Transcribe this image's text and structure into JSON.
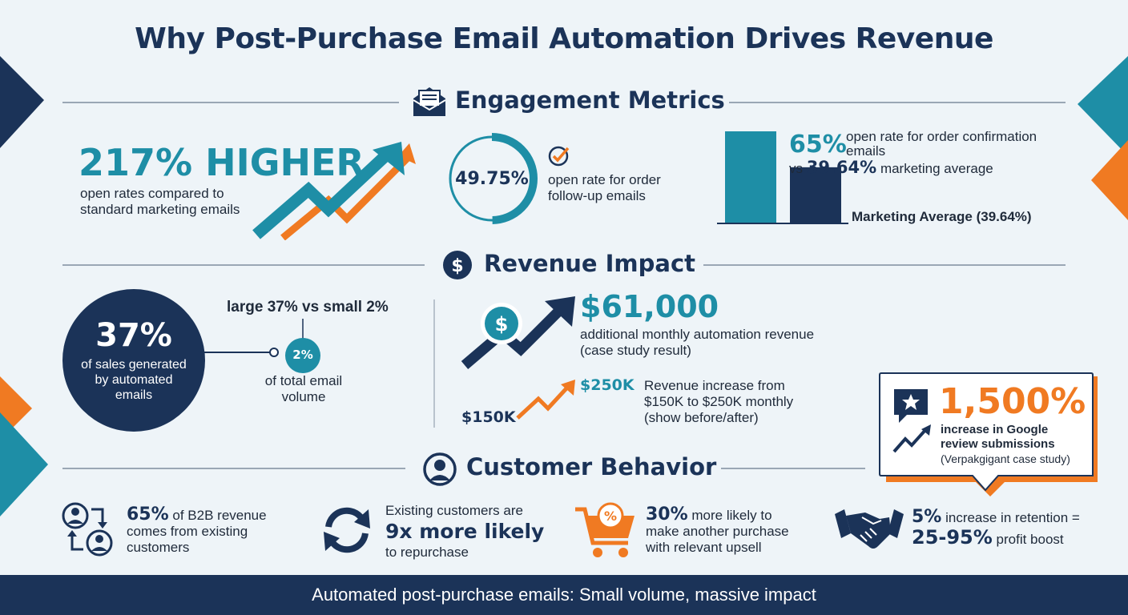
{
  "title": "Why Post-Purchase Email Automation Drives Revenue",
  "sections": {
    "engagement": "Engagement Metrics",
    "revenue": "Revenue Impact",
    "behavior": "Customer Behavior"
  },
  "engagement": {
    "higher": {
      "headline": "217% HIGHER",
      "desc_line1": "open rates compared to",
      "desc_line2": "standard marketing emails"
    },
    "ring": {
      "value_label": "49.75%",
      "value": 49.75,
      "desc_line1": "open rate for order",
      "desc_line2": "follow-up emails"
    },
    "bars": {
      "pct": "65%",
      "desc_line1": "open rate for order confirmation",
      "desc_line2": "emails",
      "vs_prefix": "vs",
      "vs_value": "39.64%",
      "vs_suffix": "marketing average",
      "axis_label": "Marketing Average (39.64%)"
    }
  },
  "chart_data": {
    "type": "bar",
    "categories": [
      "Order confirmation",
      "Marketing average"
    ],
    "values": [
      65,
      39.64
    ],
    "ylim": [
      0,
      65
    ]
  },
  "revenue": {
    "circle": {
      "big": "37%",
      "line1": "of sales generated",
      "line2": "by automated",
      "line3": "emails"
    },
    "compare_label": "large 37% vs small 2%",
    "small": {
      "badge": "2%",
      "line1": "of total email",
      "line2": "volume"
    },
    "monthly": {
      "big": "$61,000",
      "line1": "additional monthly automation revenue",
      "line2": "(case study result)"
    },
    "growth": {
      "from": "$150K",
      "to": "$250K",
      "line1": "Revenue increase from",
      "line2": "$150K to $250K monthly",
      "line3": "(show before/after)"
    },
    "reviews": {
      "big": "1,500%",
      "line1": "increase in Google",
      "line2": "review submissions",
      "line3": "(Verpakgigant case study)"
    }
  },
  "behavior": {
    "b2b": {
      "strong": "65%",
      "rest1": " of B2B revenue",
      "line2": "comes from existing",
      "line3": "customers"
    },
    "repurchase": {
      "line1": "Existing customers are",
      "big": "9x more likely",
      "line3": "to repurchase"
    },
    "upsell": {
      "strong": "30%",
      "rest1": " more likely to",
      "line2": "make another purchase",
      "line3": "with relevant upsell",
      "badge": "%"
    },
    "retention": {
      "strong": "5%",
      "rest1": " increase in retention =",
      "big2": "25-95%",
      "rest2": " profit boost"
    }
  },
  "footer": "Automated post-purchase emails: Small volume, massive impact",
  "icons": {
    "envelope": "envelope-icon",
    "dollar": "dollar-icon",
    "person": "person-icon",
    "check": "check-icon",
    "star": "star-icon",
    "cycle": "refresh-icon",
    "cart": "cart-icon",
    "handshake": "handshake-icon"
  },
  "colors": {
    "navy": "#1b3358",
    "teal": "#1e8ea6",
    "orange": "#f07a22",
    "background": "#eef4f8"
  }
}
